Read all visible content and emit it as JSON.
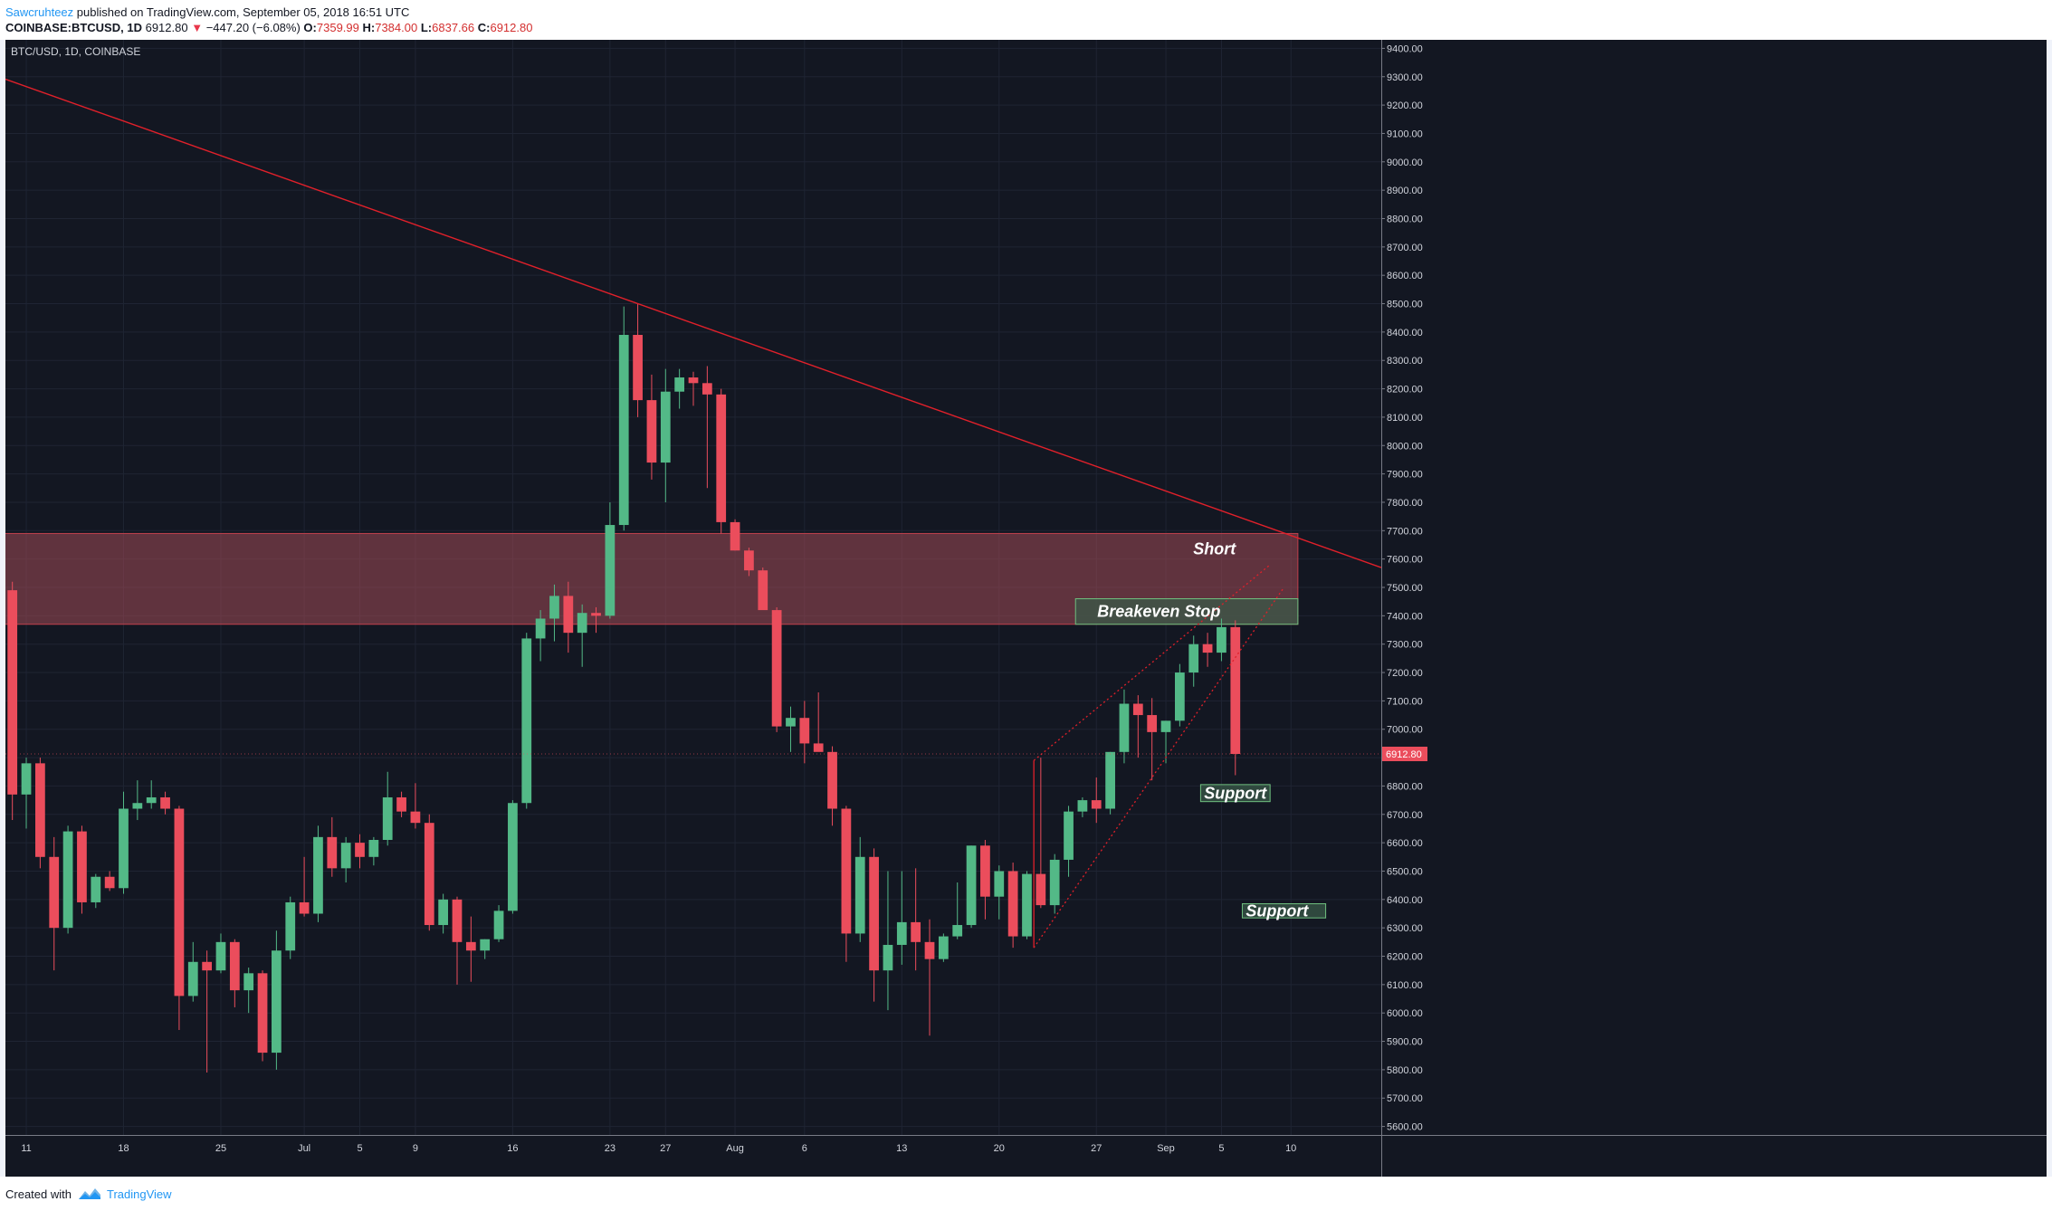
{
  "header": {
    "author": "Sawcruhteez",
    "published_text": "published on TradingView.com, September 05, 2018 16:51 UTC",
    "symbol_info": "COINBASE:BTCUSD, 1D",
    "last_price": "6912.80",
    "change_arrow": "▼",
    "change": "−447.20 (−6.08%)",
    "o_label": "O:",
    "o_value": "7359.99",
    "h_label": "H:",
    "h_value": "7384.00",
    "l_label": "L:",
    "l_value": "6837.66",
    "c_label": "C:",
    "c_value": "6912.80"
  },
  "footer": {
    "created_with": "Created with",
    "brand": "TradingView",
    "logo_icon": "tradingview-logo-icon"
  },
  "colors": {
    "up": "#53b987",
    "down": "#eb4d5c",
    "background": "#131722",
    "trendline": "#e0202a",
    "zone_fill": "#a04a55",
    "annotation_box": "#3a5a48"
  },
  "chart_data": {
    "type": "candlestick",
    "instrument_label": "BTC/USD, 1D, COINBASE",
    "last_price_label": "6912.80",
    "y_ticks": [
      5600,
      5700,
      5800,
      5900,
      6000,
      6100,
      6200,
      6300,
      6400,
      6500,
      6600,
      6700,
      6800,
      6900,
      7000,
      7100,
      7200,
      7300,
      7400,
      7500,
      7600,
      7700,
      7800,
      7900,
      8000,
      8100,
      8200,
      8300,
      8400,
      8500,
      8600,
      8700,
      8800,
      8900,
      9000,
      9100,
      9200,
      9300,
      9400
    ],
    "y_tick_labels": [
      "5600.00",
      "5700.00",
      "5800.00",
      "5900.00",
      "6000.00",
      "6100.00",
      "6200.00",
      "6300.00",
      "6400.00",
      "6500.00",
      "6600.00",
      "6700.00",
      "6800.00",
      "6900.00",
      "7000.00",
      "7100.00",
      "7200.00",
      "7300.00",
      "7400.00",
      "7500.00",
      "7600.00",
      "7700.00",
      "7800.00",
      "7900.00",
      "8000.00",
      "8100.00",
      "8200.00",
      "8300.00",
      "8400.00",
      "8500.00",
      "8600.00",
      "8700.00",
      "8800.00",
      "8900.00",
      "9000.00",
      "9100.00",
      "9200.00",
      "9300.00",
      "9400.00"
    ],
    "ylim": [
      5570,
      9430
    ],
    "x_labels": [
      {
        "i": 1,
        "label": "11"
      },
      {
        "i": 8,
        "label": "18"
      },
      {
        "i": 15,
        "label": "25"
      },
      {
        "i": 21,
        "label": "Jul"
      },
      {
        "i": 25,
        "label": "5"
      },
      {
        "i": 29,
        "label": "9"
      },
      {
        "i": 36,
        "label": "16"
      },
      {
        "i": 43,
        "label": "23"
      },
      {
        "i": 47,
        "label": "27"
      },
      {
        "i": 52,
        "label": "Aug"
      },
      {
        "i": 57,
        "label": "6"
      },
      {
        "i": 64,
        "label": "13"
      },
      {
        "i": 71,
        "label": "20"
      },
      {
        "i": 78,
        "label": "27"
      },
      {
        "i": 83,
        "label": "Sep"
      },
      {
        "i": 87,
        "label": "5"
      },
      {
        "i": 92,
        "label": "10"
      }
    ],
    "x_range": [
      -0.5,
      98.5
    ],
    "candles": [
      {
        "o": 7490,
        "h": 7520,
        "l": 6680,
        "c": 6770
      },
      {
        "o": 6770,
        "h": 6900,
        "l": 6650,
        "c": 6880
      },
      {
        "o": 6880,
        "h": 6900,
        "l": 6510,
        "c": 6550
      },
      {
        "o": 6550,
        "h": 6620,
        "l": 6150,
        "c": 6300
      },
      {
        "o": 6300,
        "h": 6660,
        "l": 6280,
        "c": 6640
      },
      {
        "o": 6640,
        "h": 6660,
        "l": 6350,
        "c": 6390
      },
      {
        "o": 6390,
        "h": 6490,
        "l": 6370,
        "c": 6480
      },
      {
        "o": 6480,
        "h": 6500,
        "l": 6430,
        "c": 6440
      },
      {
        "o": 6440,
        "h": 6780,
        "l": 6420,
        "c": 6720
      },
      {
        "o": 6720,
        "h": 6820,
        "l": 6680,
        "c": 6740
      },
      {
        "o": 6740,
        "h": 6820,
        "l": 6720,
        "c": 6760
      },
      {
        "o": 6760,
        "h": 6780,
        "l": 6700,
        "c": 6720
      },
      {
        "o": 6720,
        "h": 6730,
        "l": 5940,
        "c": 6060
      },
      {
        "o": 6060,
        "h": 6250,
        "l": 6040,
        "c": 6180
      },
      {
        "o": 6180,
        "h": 6220,
        "l": 5790,
        "c": 6150
      },
      {
        "o": 6150,
        "h": 6280,
        "l": 6140,
        "c": 6250
      },
      {
        "o": 6250,
        "h": 6260,
        "l": 6020,
        "c": 6080
      },
      {
        "o": 6080,
        "h": 6160,
        "l": 6000,
        "c": 6140
      },
      {
        "o": 6140,
        "h": 6150,
        "l": 5830,
        "c": 5860
      },
      {
        "o": 5860,
        "h": 6290,
        "l": 5800,
        "c": 6220
      },
      {
        "o": 6220,
        "h": 6410,
        "l": 6190,
        "c": 6390
      },
      {
        "o": 6390,
        "h": 6550,
        "l": 6340,
        "c": 6350
      },
      {
        "o": 6350,
        "h": 6660,
        "l": 6320,
        "c": 6620
      },
      {
        "o": 6620,
        "h": 6690,
        "l": 6480,
        "c": 6510
      },
      {
        "o": 6510,
        "h": 6620,
        "l": 6460,
        "c": 6600
      },
      {
        "o": 6600,
        "h": 6630,
        "l": 6510,
        "c": 6550
      },
      {
        "o": 6550,
        "h": 6620,
        "l": 6520,
        "c": 6610
      },
      {
        "o": 6610,
        "h": 6850,
        "l": 6590,
        "c": 6760
      },
      {
        "o": 6760,
        "h": 6780,
        "l": 6690,
        "c": 6710
      },
      {
        "o": 6710,
        "h": 6810,
        "l": 6650,
        "c": 6670
      },
      {
        "o": 6670,
        "h": 6700,
        "l": 6290,
        "c": 6310
      },
      {
        "o": 6310,
        "h": 6420,
        "l": 6280,
        "c": 6400
      },
      {
        "o": 6400,
        "h": 6410,
        "l": 6100,
        "c": 6250
      },
      {
        "o": 6250,
        "h": 6340,
        "l": 6110,
        "c": 6220
      },
      {
        "o": 6220,
        "h": 6260,
        "l": 6190,
        "c": 6260
      },
      {
        "o": 6260,
        "h": 6380,
        "l": 6250,
        "c": 6360
      },
      {
        "o": 6360,
        "h": 6750,
        "l": 6350,
        "c": 6740
      },
      {
        "o": 6740,
        "h": 7340,
        "l": 6720,
        "c": 7320
      },
      {
        "o": 7320,
        "h": 7420,
        "l": 7240,
        "c": 7390
      },
      {
        "o": 7390,
        "h": 7510,
        "l": 7310,
        "c": 7470
      },
      {
        "o": 7470,
        "h": 7520,
        "l": 7270,
        "c": 7340
      },
      {
        "o": 7340,
        "h": 7440,
        "l": 7220,
        "c": 7410
      },
      {
        "o": 7410,
        "h": 7430,
        "l": 7340,
        "c": 7400
      },
      {
        "o": 7400,
        "h": 7800,
        "l": 7390,
        "c": 7720
      },
      {
        "o": 7720,
        "h": 8490,
        "l": 7700,
        "c": 8390
      },
      {
        "o": 8390,
        "h": 8500,
        "l": 8100,
        "c": 8160
      },
      {
        "o": 8160,
        "h": 8250,
        "l": 7880,
        "c": 7940
      },
      {
        "o": 7940,
        "h": 8270,
        "l": 7800,
        "c": 8190
      },
      {
        "o": 8190,
        "h": 8270,
        "l": 8130,
        "c": 8240
      },
      {
        "o": 8240,
        "h": 8260,
        "l": 8140,
        "c": 8220
      },
      {
        "o": 8220,
        "h": 8280,
        "l": 7850,
        "c": 8180
      },
      {
        "o": 8180,
        "h": 8200,
        "l": 7690,
        "c": 7730
      },
      {
        "o": 7730,
        "h": 7740,
        "l": 7630,
        "c": 7630
      },
      {
        "o": 7630,
        "h": 7640,
        "l": 7540,
        "c": 7560
      },
      {
        "o": 7560,
        "h": 7570,
        "l": 7450,
        "c": 7420
      },
      {
        "o": 7420,
        "h": 7430,
        "l": 6990,
        "c": 7010
      },
      {
        "o": 7010,
        "h": 7080,
        "l": 6920,
        "c": 7040
      },
      {
        "o": 7040,
        "h": 7100,
        "l": 6880,
        "c": 6950
      },
      {
        "o": 6950,
        "h": 7130,
        "l": 6940,
        "c": 6920
      },
      {
        "o": 6920,
        "h": 6940,
        "l": 6660,
        "c": 6720
      },
      {
        "o": 6720,
        "h": 6730,
        "l": 6180,
        "c": 6280
      },
      {
        "o": 6280,
        "h": 6620,
        "l": 6250,
        "c": 6550
      },
      {
        "o": 6550,
        "h": 6580,
        "l": 6040,
        "c": 6150
      },
      {
        "o": 6150,
        "h": 6500,
        "l": 6010,
        "c": 6240
      },
      {
        "o": 6240,
        "h": 6500,
        "l": 6170,
        "c": 6320
      },
      {
        "o": 6320,
        "h": 6510,
        "l": 6150,
        "c": 6250
      },
      {
        "o": 6250,
        "h": 6330,
        "l": 5920,
        "c": 6190
      },
      {
        "o": 6190,
        "h": 6280,
        "l": 6180,
        "c": 6270
      },
      {
        "o": 6270,
        "h": 6460,
        "l": 6260,
        "c": 6310
      },
      {
        "o": 6310,
        "h": 6590,
        "l": 6300,
        "c": 6590
      },
      {
        "o": 6590,
        "h": 6610,
        "l": 6330,
        "c": 6410
      },
      {
        "o": 6410,
        "h": 6520,
        "l": 6330,
        "c": 6500
      },
      {
        "o": 6500,
        "h": 6530,
        "l": 6230,
        "c": 6270
      },
      {
        "o": 6270,
        "h": 6500,
        "l": 6260,
        "c": 6490
      },
      {
        "o": 6490,
        "h": 6900,
        "l": 6370,
        "c": 6380
      },
      {
        "o": 6380,
        "h": 6560,
        "l": 6350,
        "c": 6540
      },
      {
        "o": 6540,
        "h": 6730,
        "l": 6480,
        "c": 6710
      },
      {
        "o": 6710,
        "h": 6760,
        "l": 6690,
        "c": 6750
      },
      {
        "o": 6750,
        "h": 6830,
        "l": 6670,
        "c": 6720
      },
      {
        "o": 6720,
        "h": 6920,
        "l": 6700,
        "c": 6920
      },
      {
        "o": 6920,
        "h": 7140,
        "l": 6880,
        "c": 7090
      },
      {
        "o": 7090,
        "h": 7120,
        "l": 6900,
        "c": 7050
      },
      {
        "o": 7050,
        "h": 7110,
        "l": 6820,
        "c": 6990
      },
      {
        "o": 6990,
        "h": 7030,
        "l": 6880,
        "c": 7030
      },
      {
        "o": 7030,
        "h": 7230,
        "l": 7010,
        "c": 7200
      },
      {
        "o": 7200,
        "h": 7330,
        "l": 7150,
        "c": 7300
      },
      {
        "o": 7300,
        "h": 7340,
        "l": 7220,
        "c": 7270
      },
      {
        "o": 7270,
        "h": 7390,
        "l": 7240,
        "c": 7360
      },
      {
        "o": 7360,
        "h": 7384,
        "l": 6838,
        "c": 6913
      }
    ],
    "trendline": {
      "x1": -1,
      "y1": 9300,
      "x2": 98.5,
      "y2": 7570
    },
    "resistance_zone": {
      "x1": -1,
      "x2": 92.5,
      "y_low": 7370,
      "y_high": 7690
    },
    "wedge": {
      "support": {
        "x1": 73.5,
        "y1": 6230,
        "x2": 91.5,
        "y2": 7500
      },
      "resistance": {
        "x1": 73.5,
        "y1": 6890,
        "x2": 90.5,
        "y2": 7580
      },
      "vertical": {
        "x": 73.5,
        "y_low": 6230,
        "y_high": 6890
      }
    },
    "annotations": [
      {
        "text": "Short",
        "x": 86.5,
        "y": 7635,
        "boxed": false
      },
      {
        "text": "Breakeven Stop",
        "x": 82.5,
        "y": 7415,
        "boxed": true,
        "x_from": 76.5,
        "x_to": 92.5,
        "y_low": 7370,
        "y_high": 7460
      },
      {
        "text": "Support",
        "x": 88,
        "y": 6775,
        "boxed": true,
        "x_from": 85.5,
        "x_to": 90.5,
        "y_low": 6745,
        "y_high": 6805
      },
      {
        "text": "Support",
        "x": 91,
        "y": 6360,
        "boxed": true,
        "x_from": 88.5,
        "x_to": 94.5,
        "y_low": 6335,
        "y_high": 6385
      }
    ]
  }
}
